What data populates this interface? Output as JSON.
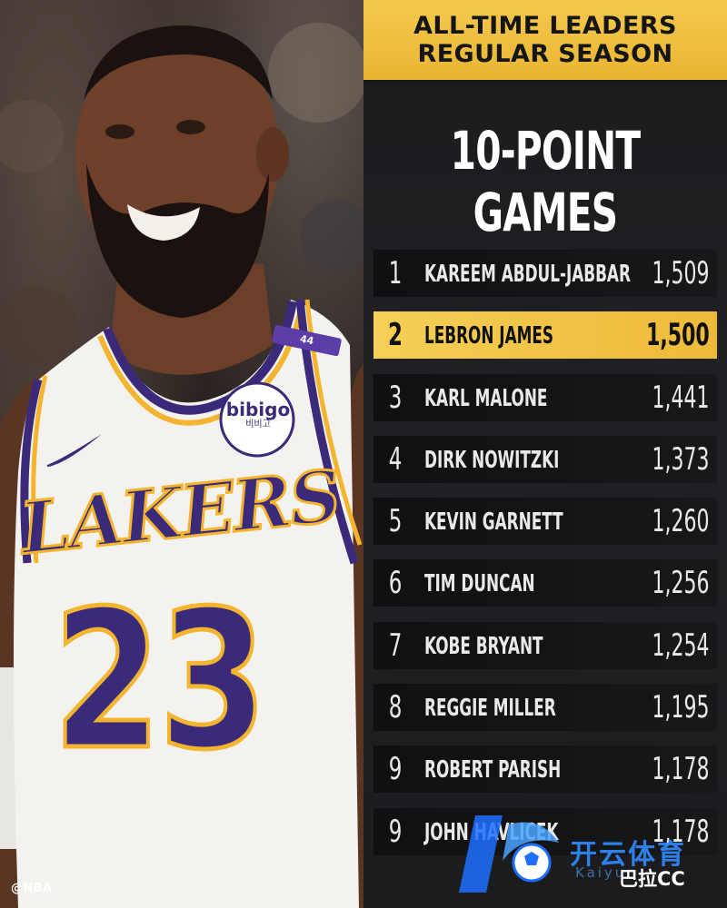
{
  "header": {
    "line1": "ALL-TIME LEADERS",
    "line2": "REGULAR SEASON"
  },
  "stat_title": "10-POINT GAMES",
  "jersey": {
    "team_wordmark": "LAKERS",
    "number": "23",
    "sponsor": "bibigo",
    "sponsor_sub": "비비고",
    "patch": "44"
  },
  "credit": "@NBA",
  "leaders": [
    {
      "rank": "1",
      "name": "KAREEM ABDUL-JABBAR",
      "value": "1,509",
      "highlight": false
    },
    {
      "rank": "2",
      "name": "LEBRON JAMES",
      "value": "1,500",
      "highlight": true
    },
    {
      "rank": "3",
      "name": "KARL MALONE",
      "value": "1,441",
      "highlight": false
    },
    {
      "rank": "4",
      "name": "DIRK NOWITZKI",
      "value": "1,373",
      "highlight": false
    },
    {
      "rank": "5",
      "name": "KEVIN GARNETT",
      "value": "1,260",
      "highlight": false
    },
    {
      "rank": "6",
      "name": "TIM DUNCAN",
      "value": "1,256",
      "highlight": false
    },
    {
      "rank": "7",
      "name": "KOBE BRYANT",
      "value": "1,254",
      "highlight": false
    },
    {
      "rank": "8",
      "name": "REGGIE MILLER",
      "value": "1,195",
      "highlight": false
    },
    {
      "rank": "9",
      "name": "ROBERT PARISH",
      "value": "1,178",
      "highlight": false
    },
    {
      "rank": "9",
      "name": "JOHN HAVLICEK",
      "value": "1,178",
      "highlight": false
    }
  ],
  "watermark": {
    "cn": "开云体育",
    "en": "Kaiyun",
    "sub": "巴拉CC"
  },
  "colors": {
    "gold": "#f2c444",
    "panel": "#1c1d20",
    "row": "#121315",
    "lakers_purple": "#3b2a79",
    "lakers_gold": "#f3b52f"
  }
}
